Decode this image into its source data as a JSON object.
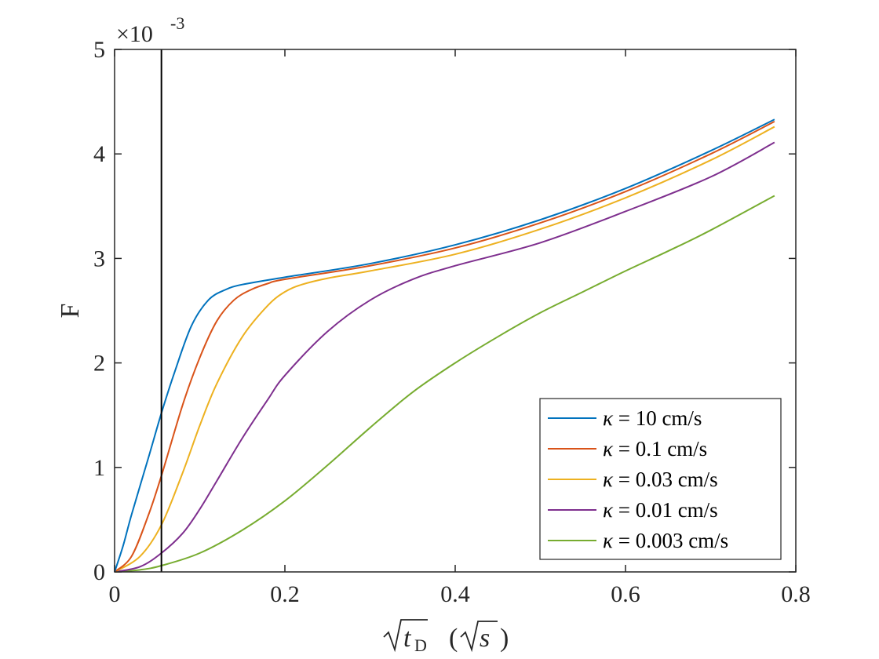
{
  "chart_data": {
    "type": "line",
    "xlabel": "√(t_D) (√s)",
    "ylabel": "F",
    "y_multiplier_label": "×10",
    "y_multiplier_exponent": "-3",
    "xlim": [
      0,
      0.8
    ],
    "ylim": [
      0,
      5
    ],
    "x_ticks": [
      0,
      0.2,
      0.4,
      0.6,
      0.8
    ],
    "x_tick_labels": [
      "0",
      "0.2",
      "0.4",
      "0.6",
      "0.8"
    ],
    "y_ticks": [
      0,
      1,
      2,
      3,
      4,
      5
    ],
    "y_tick_labels": [
      "0",
      "1",
      "2",
      "3",
      "4",
      "5"
    ],
    "grid": false,
    "legend_position": "lower-right",
    "vertical_line_x": 0.055,
    "series": [
      {
        "name": "κ = 10 cm/s",
        "symbol": "κ",
        "value_text": " = 10 cm/s",
        "color": "#0072BD",
        "x": [
          0,
          0.01,
          0.02,
          0.04,
          0.055,
          0.07,
          0.09,
          0.11,
          0.13,
          0.15,
          0.2,
          0.3,
          0.4,
          0.5,
          0.6,
          0.7,
          0.775
        ],
        "y": [
          0,
          0.25,
          0.55,
          1.1,
          1.52,
          1.9,
          2.35,
          2.6,
          2.7,
          2.75,
          2.82,
          2.95,
          3.13,
          3.37,
          3.67,
          4.03,
          4.33
        ]
      },
      {
        "name": "κ = 0.1 cm/s",
        "symbol": "κ",
        "value_text": " = 0.1 cm/s",
        "color": "#D95319",
        "x": [
          0,
          0.02,
          0.04,
          0.055,
          0.08,
          0.1,
          0.12,
          0.14,
          0.16,
          0.18,
          0.2,
          0.3,
          0.4,
          0.5,
          0.6,
          0.7,
          0.775
        ],
        "y": [
          0,
          0.15,
          0.55,
          0.92,
          1.6,
          2.05,
          2.4,
          2.6,
          2.7,
          2.76,
          2.8,
          2.93,
          3.1,
          3.34,
          3.64,
          4.0,
          4.31
        ]
      },
      {
        "name": "κ = 0.03 cm/s",
        "symbol": "κ",
        "value_text": " = 0.03 cm/s",
        "color": "#EDB120",
        "x": [
          0,
          0.03,
          0.055,
          0.08,
          0.1,
          0.12,
          0.15,
          0.18,
          0.2,
          0.22,
          0.25,
          0.3,
          0.4,
          0.5,
          0.6,
          0.7,
          0.775
        ],
        "y": [
          0,
          0.15,
          0.45,
          0.95,
          1.4,
          1.8,
          2.25,
          2.55,
          2.68,
          2.75,
          2.81,
          2.88,
          3.04,
          3.28,
          3.58,
          3.94,
          4.26
        ]
      },
      {
        "name": "κ = 0.01 cm/s",
        "symbol": "κ",
        "value_text": " = 0.01 cm/s",
        "color": "#7E2F8E",
        "x": [
          0,
          0.03,
          0.055,
          0.08,
          0.1,
          0.12,
          0.15,
          0.18,
          0.2,
          0.25,
          0.3,
          0.35,
          0.4,
          0.5,
          0.6,
          0.7,
          0.775
        ],
        "y": [
          0,
          0.05,
          0.18,
          0.37,
          0.6,
          0.87,
          1.28,
          1.65,
          1.88,
          2.3,
          2.6,
          2.8,
          2.93,
          3.15,
          3.45,
          3.78,
          4.11
        ]
      },
      {
        "name": "κ = 0.003 cm/s",
        "symbol": "κ",
        "value_text": " = 0.003 cm/s",
        "color": "#77AC30",
        "x": [
          0,
          0.03,
          0.055,
          0.1,
          0.15,
          0.2,
          0.25,
          0.3,
          0.35,
          0.4,
          0.45,
          0.5,
          0.55,
          0.6,
          0.65,
          0.7,
          0.775
        ],
        "y": [
          0,
          0.02,
          0.06,
          0.18,
          0.4,
          0.68,
          1.02,
          1.38,
          1.72,
          2.0,
          2.25,
          2.48,
          2.68,
          2.88,
          3.07,
          3.27,
          3.6
        ]
      }
    ]
  }
}
